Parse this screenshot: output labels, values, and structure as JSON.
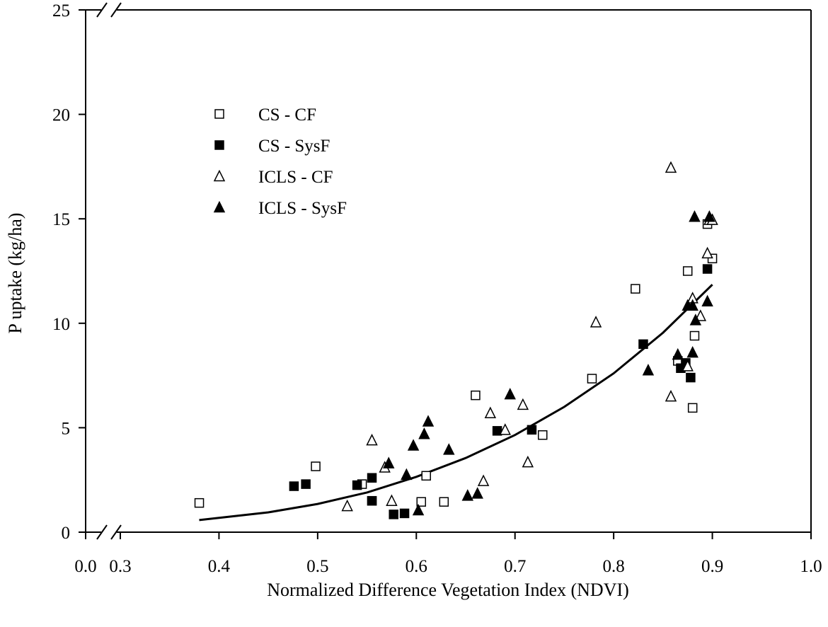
{
  "chart_data": {
    "type": "scatter",
    "title": "",
    "xlabel": "Normalized Difference Vegetation Index (NDVI)",
    "ylabel": "P uptake (kg/ha)",
    "xlim": [
      0.0,
      1.0
    ],
    "x_break": [
      0.0,
      0.3
    ],
    "ylim": [
      0,
      25
    ],
    "x_ticks": [
      0.0,
      0.3,
      0.4,
      0.5,
      0.6,
      0.7,
      0.8,
      0.9,
      1.0
    ],
    "x_tick_labels": [
      "0.0",
      "0.3",
      "0.4",
      "0.5",
      "0.6",
      "0.7",
      "0.8",
      "0.9",
      "1.0"
    ],
    "y_ticks": [
      0,
      5,
      10,
      15,
      20,
      25
    ],
    "y_tick_labels": [
      "0",
      "5",
      "10",
      "15",
      "20",
      "25"
    ],
    "grid": false,
    "legend_position": "upper-left",
    "series": [
      {
        "name": "CS - CF",
        "marker": "square-open",
        "points": [
          [
            0.38,
            1.4
          ],
          [
            0.498,
            3.15
          ],
          [
            0.545,
            2.3
          ],
          [
            0.555,
            1.5
          ],
          [
            0.61,
            2.7
          ],
          [
            0.605,
            1.45
          ],
          [
            0.628,
            1.45
          ],
          [
            0.66,
            6.55
          ],
          [
            0.728,
            4.65
          ],
          [
            0.778,
            7.35
          ],
          [
            0.822,
            11.65
          ],
          [
            0.865,
            8.2
          ],
          [
            0.875,
            12.5
          ],
          [
            0.882,
            9.4
          ],
          [
            0.88,
            5.95
          ],
          [
            0.895,
            14.75
          ],
          [
            0.9,
            13.1
          ]
        ]
      },
      {
        "name": "CS - SysF",
        "marker": "square-filled",
        "points": [
          [
            0.476,
            2.2
          ],
          [
            0.488,
            2.3
          ],
          [
            0.54,
            2.25
          ],
          [
            0.555,
            2.6
          ],
          [
            0.555,
            1.5
          ],
          [
            0.577,
            0.85
          ],
          [
            0.588,
            0.9
          ],
          [
            0.682,
            4.85
          ],
          [
            0.717,
            4.9
          ],
          [
            0.83,
            9.0
          ],
          [
            0.868,
            7.85
          ],
          [
            0.873,
            8.1
          ],
          [
            0.878,
            7.4
          ],
          [
            0.895,
            12.6
          ]
        ]
      },
      {
        "name": "ICLS - CF",
        "marker": "triangle-open",
        "points": [
          [
            0.53,
            1.25
          ],
          [
            0.555,
            4.4
          ],
          [
            0.568,
            3.1
          ],
          [
            0.575,
            1.5
          ],
          [
            0.668,
            2.45
          ],
          [
            0.675,
            5.7
          ],
          [
            0.69,
            4.9
          ],
          [
            0.708,
            6.1
          ],
          [
            0.713,
            3.35
          ],
          [
            0.782,
            10.05
          ],
          [
            0.858,
            17.45
          ],
          [
            0.858,
            6.5
          ],
          [
            0.875,
            7.95
          ],
          [
            0.88,
            11.2
          ],
          [
            0.888,
            10.35
          ],
          [
            0.895,
            13.35
          ],
          [
            0.897,
            14.95
          ],
          [
            0.9,
            14.95
          ]
        ]
      },
      {
        "name": "ICLS - SysF",
        "marker": "triangle-filled",
        "points": [
          [
            0.572,
            3.3
          ],
          [
            0.59,
            2.75
          ],
          [
            0.597,
            4.15
          ],
          [
            0.602,
            1.05
          ],
          [
            0.608,
            4.7
          ],
          [
            0.612,
            5.3
          ],
          [
            0.633,
            3.95
          ],
          [
            0.652,
            1.75
          ],
          [
            0.662,
            1.85
          ],
          [
            0.695,
            6.6
          ],
          [
            0.835,
            7.75
          ],
          [
            0.865,
            8.5
          ],
          [
            0.875,
            10.85
          ],
          [
            0.88,
            10.85
          ],
          [
            0.88,
            8.6
          ],
          [
            0.882,
            15.1
          ],
          [
            0.883,
            10.15
          ],
          [
            0.895,
            11.05
          ],
          [
            0.897,
            15.1
          ]
        ]
      }
    ],
    "fit": {
      "type": "exponential",
      "x": [
        0.38,
        0.45,
        0.5,
        0.55,
        0.6,
        0.65,
        0.7,
        0.75,
        0.8,
        0.85,
        0.9
      ],
      "y": [
        0.58,
        0.95,
        1.35,
        1.9,
        2.65,
        3.55,
        4.65,
        6.0,
        7.6,
        9.55,
        11.85
      ]
    }
  }
}
